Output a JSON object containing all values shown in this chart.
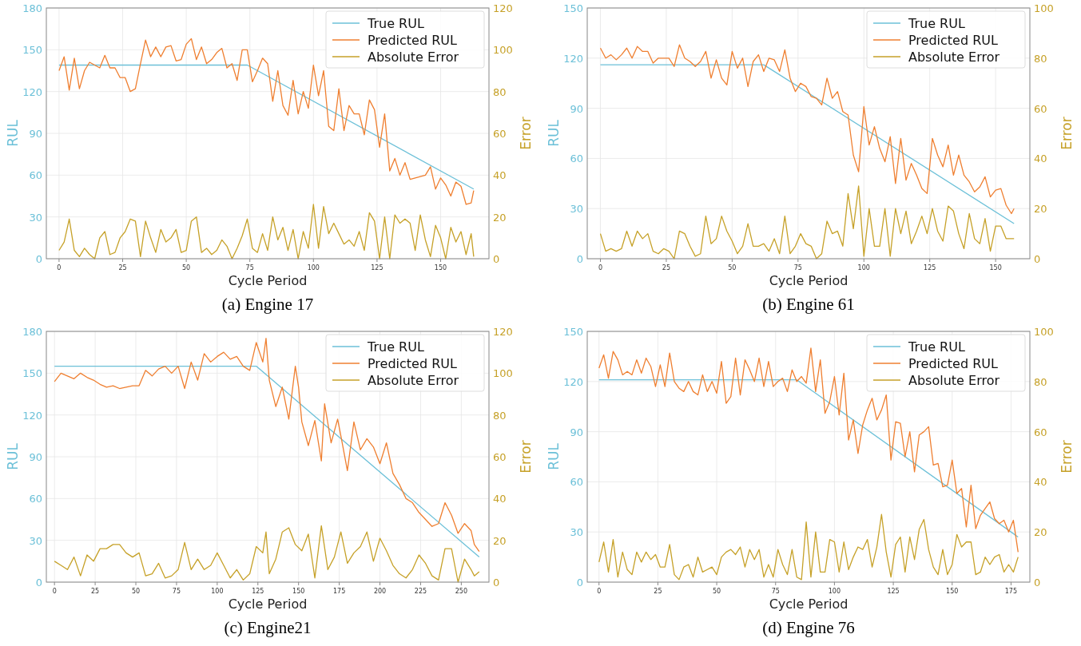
{
  "chart_data": [
    {
      "type": "line",
      "title": "(a) Engine 17",
      "xlabel": "Cycle Period",
      "ylabel": "RUL",
      "y2label": "Error",
      "xlim": [
        -5,
        169
      ],
      "xticks": [
        0,
        25,
        50,
        75,
        100,
        125,
        150
      ],
      "ylim": [
        0,
        180
      ],
      "yticks": [
        0,
        30,
        60,
        90,
        120,
        150,
        180
      ],
      "y2lim": [
        0,
        120
      ],
      "y2ticks": [
        0,
        20,
        40,
        60,
        80,
        100,
        120
      ],
      "grid": true,
      "legend": "top right",
      "series": [
        {
          "name": "True RUL",
          "color": "#6cc0d8",
          "x": [
            0,
            74,
            163
          ],
          "values": [
            139,
            139,
            50
          ]
        },
        {
          "name": "Predicted RUL",
          "color": "#ef7f30",
          "x": [
            0,
            2,
            4,
            6,
            8,
            10,
            12,
            14,
            16,
            18,
            20,
            22,
            24,
            26,
            28,
            30,
            32,
            34,
            36,
            38,
            40,
            42,
            44,
            46,
            48,
            50,
            52,
            54,
            56,
            58,
            60,
            62,
            64,
            66,
            68,
            70,
            72,
            74,
            76,
            78,
            80,
            82,
            84,
            86,
            88,
            90,
            92,
            94,
            96,
            98,
            100,
            102,
            104,
            106,
            108,
            110,
            112,
            114,
            116,
            118,
            120,
            122,
            124,
            126,
            128,
            130,
            132,
            134,
            136,
            138,
            140,
            142,
            144,
            146,
            148,
            150,
            152,
            154,
            156,
            158,
            160,
            162,
            163
          ],
          "values": [
            135,
            145,
            121,
            144,
            122,
            135,
            141,
            139,
            137,
            146,
            137,
            137,
            130,
            130,
            120,
            122,
            140,
            157,
            145,
            152,
            145,
            152,
            153,
            142,
            143,
            154,
            158,
            143,
            152,
            140,
            143,
            148,
            151,
            137,
            140,
            128,
            150,
            150,
            127,
            135,
            144,
            140,
            113,
            135,
            110,
            103,
            128,
            104,
            120,
            108,
            139,
            117,
            135,
            95,
            92,
            122,
            92,
            110,
            104,
            104,
            89,
            114,
            107,
            80,
            104,
            63,
            72,
            60,
            69,
            57,
            58,
            59,
            60,
            66,
            50,
            58,
            53,
            45,
            55,
            52,
            39,
            40,
            49
          ]
        },
        {
          "name": "Absolute Error",
          "color": "#c6a128",
          "axis": "y2",
          "x": [
            0,
            2,
            4,
            6,
            8,
            10,
            12,
            14,
            16,
            18,
            20,
            22,
            24,
            26,
            28,
            30,
            32,
            34,
            36,
            38,
            40,
            42,
            44,
            46,
            48,
            50,
            52,
            54,
            56,
            58,
            60,
            62,
            64,
            66,
            68,
            70,
            72,
            74,
            76,
            78,
            80,
            82,
            84,
            86,
            88,
            90,
            92,
            94,
            96,
            98,
            100,
            102,
            104,
            106,
            108,
            110,
            112,
            114,
            116,
            118,
            120,
            122,
            124,
            126,
            128,
            130,
            132,
            134,
            136,
            138,
            140,
            142,
            144,
            146,
            148,
            150,
            152,
            154,
            156,
            158,
            160,
            162,
            163
          ],
          "values": [
            4,
            8,
            19,
            4,
            1,
            5,
            2,
            0,
            10,
            13,
            2,
            3,
            10,
            13,
            19,
            18,
            1,
            18,
            10,
            3,
            14,
            8,
            10,
            14,
            3,
            4,
            18,
            20,
            3,
            5,
            2,
            4,
            9,
            6,
            0,
            5,
            11,
            19,
            5,
            3,
            12,
            4,
            20,
            9,
            15,
            4,
            14,
            0,
            13,
            5,
            26,
            5,
            25,
            12,
            17,
            12,
            7,
            9,
            6,
            13,
            4,
            22,
            18,
            0,
            20,
            0,
            21,
            17,
            19,
            17,
            4,
            21,
            9,
            1,
            16,
            10,
            0,
            15,
            8,
            13,
            2,
            12,
            1
          ]
        }
      ]
    },
    {
      "type": "line",
      "title": "(b) Engine 61",
      "xlabel": "Cycle Period",
      "ylabel": "RUL",
      "y2label": "Error",
      "xlim": [
        -5,
        163
      ],
      "xticks": [
        0,
        25,
        50,
        75,
        100,
        125,
        150
      ],
      "ylim": [
        0,
        150
      ],
      "yticks": [
        0,
        30,
        60,
        90,
        120,
        150
      ],
      "y2lim": [
        0,
        100
      ],
      "y2ticks": [
        0,
        20,
        40,
        60,
        80,
        100
      ],
      "grid": true,
      "legend": "top right",
      "series": [
        {
          "name": "True RUL",
          "color": "#6cc0d8",
          "x": [
            0,
            62,
            157
          ],
          "values": [
            116,
            116,
            21
          ]
        },
        {
          "name": "Predicted RUL",
          "color": "#ef7f30",
          "x": [
            0,
            2,
            4,
            6,
            8,
            10,
            12,
            14,
            16,
            18,
            20,
            22,
            24,
            26,
            28,
            30,
            32,
            34,
            36,
            38,
            40,
            42,
            44,
            46,
            48,
            50,
            52,
            54,
            56,
            58,
            60,
            62,
            64,
            66,
            68,
            70,
            72,
            74,
            76,
            78,
            80,
            82,
            84,
            86,
            88,
            90,
            92,
            94,
            96,
            98,
            100,
            102,
            104,
            106,
            108,
            110,
            112,
            114,
            116,
            118,
            120,
            122,
            124,
            126,
            128,
            130,
            132,
            134,
            136,
            138,
            140,
            142,
            144,
            146,
            148,
            150,
            152,
            154,
            156,
            157
          ],
          "values": [
            126,
            120,
            122,
            119,
            122,
            126,
            120,
            127,
            124,
            124,
            117,
            120,
            120,
            120,
            115,
            128,
            120,
            118,
            115,
            118,
            124,
            108,
            119,
            108,
            104,
            124,
            114,
            120,
            103,
            118,
            122,
            112,
            120,
            119,
            112,
            125,
            108,
            100,
            105,
            103,
            97,
            96,
            92,
            108,
            96,
            100,
            88,
            86,
            62,
            52,
            91,
            68,
            79,
            66,
            58,
            73,
            45,
            72,
            47,
            57,
            50,
            42,
            39,
            72,
            62,
            55,
            68,
            50,
            62,
            50,
            46,
            40,
            43,
            49,
            37,
            41,
            42,
            32,
            27,
            30
          ]
        },
        {
          "name": "Absolute Error",
          "color": "#c6a128",
          "axis": "y2",
          "x": [
            0,
            2,
            4,
            6,
            8,
            10,
            12,
            14,
            16,
            18,
            20,
            22,
            24,
            26,
            28,
            30,
            32,
            34,
            36,
            38,
            40,
            42,
            44,
            46,
            48,
            50,
            52,
            54,
            56,
            58,
            60,
            62,
            64,
            66,
            68,
            70,
            72,
            74,
            76,
            78,
            80,
            82,
            84,
            86,
            88,
            90,
            92,
            94,
            96,
            98,
            100,
            102,
            104,
            106,
            108,
            110,
            112,
            114,
            116,
            118,
            120,
            122,
            124,
            126,
            128,
            130,
            132,
            134,
            136,
            138,
            140,
            142,
            144,
            146,
            148,
            150,
            152,
            154,
            156,
            157
          ],
          "values": [
            10,
            3,
            4,
            3,
            4,
            11,
            5,
            11,
            8,
            10,
            3,
            2,
            4,
            3,
            0,
            11,
            10,
            5,
            1,
            2,
            17,
            6,
            8,
            17,
            11,
            7,
            2,
            5,
            14,
            5,
            5,
            6,
            3,
            8,
            2,
            17,
            2,
            5,
            10,
            6,
            5,
            0,
            2,
            15,
            10,
            11,
            5,
            26,
            12,
            29,
            1,
            20,
            5,
            5,
            20,
            1,
            20,
            10,
            19,
            6,
            11,
            17,
            10,
            20,
            11,
            7,
            21,
            19,
            10,
            4,
            18,
            8,
            6,
            16,
            3,
            13,
            13,
            8,
            8,
            8
          ]
        }
      ]
    },
    {
      "type": "line",
      "title": "(c) Engine21",
      "xlabel": "Cycle Period",
      "ylabel": "RUL",
      "y2label": "Error",
      "xlim": [
        -5,
        267
      ],
      "xticks": [
        0,
        25,
        50,
        75,
        100,
        125,
        150,
        175,
        200,
        225,
        250
      ],
      "ylim": [
        0,
        180
      ],
      "yticks": [
        0,
        30,
        60,
        90,
        120,
        150,
        180
      ],
      "y2lim": [
        0,
        120
      ],
      "y2ticks": [
        0,
        20,
        40,
        60,
        80,
        100,
        120
      ],
      "grid": true,
      "legend": "top right",
      "series": [
        {
          "name": "True RUL",
          "color": "#6cc0d8",
          "x": [
            0,
            124,
            261
          ],
          "values": [
            155,
            155,
            18
          ]
        },
        {
          "name": "Predicted RUL",
          "color": "#ef7f30",
          "x": [
            0,
            4,
            8,
            12,
            16,
            20,
            24,
            28,
            32,
            36,
            40,
            44,
            48,
            52,
            56,
            60,
            64,
            68,
            72,
            76,
            80,
            84,
            88,
            92,
            96,
            100,
            104,
            108,
            112,
            116,
            120,
            124,
            128,
            130,
            132,
            136,
            140,
            144,
            148,
            150,
            152,
            156,
            160,
            164,
            166,
            170,
            174,
            176,
            180,
            184,
            188,
            192,
            196,
            200,
            204,
            208,
            212,
            216,
            220,
            224,
            228,
            232,
            236,
            240,
            244,
            248,
            252,
            256,
            258,
            261
          ],
          "values": [
            144,
            150,
            148,
            146,
            150,
            147,
            145,
            142,
            140,
            141,
            139,
            140,
            141,
            141,
            152,
            148,
            153,
            155,
            150,
            155,
            139,
            158,
            145,
            164,
            158,
            162,
            165,
            160,
            162,
            155,
            152,
            172,
            158,
            175,
            145,
            126,
            140,
            117,
            155,
            140,
            115,
            98,
            116,
            87,
            128,
            100,
            117,
            105,
            80,
            115,
            95,
            103,
            97,
            85,
            100,
            78,
            70,
            60,
            57,
            50,
            45,
            40,
            42,
            57,
            48,
            35,
            42,
            37,
            27,
            22
          ]
        },
        {
          "name": "Absolute Error",
          "color": "#c6a128",
          "axis": "y2",
          "x": [
            0,
            4,
            8,
            12,
            16,
            20,
            24,
            28,
            32,
            36,
            40,
            44,
            48,
            52,
            56,
            60,
            64,
            68,
            72,
            76,
            80,
            84,
            88,
            92,
            96,
            100,
            104,
            108,
            112,
            116,
            120,
            124,
            128,
            130,
            132,
            136,
            140,
            144,
            148,
            152,
            156,
            160,
            164,
            168,
            172,
            176,
            180,
            184,
            188,
            192,
            196,
            200,
            204,
            208,
            212,
            216,
            220,
            224,
            228,
            232,
            236,
            240,
            244,
            248,
            252,
            256,
            258,
            261
          ],
          "values": [
            10,
            8,
            6,
            12,
            3,
            13,
            10,
            16,
            16,
            18,
            18,
            14,
            12,
            14,
            3,
            4,
            9,
            2,
            3,
            6,
            19,
            6,
            11,
            6,
            8,
            14,
            8,
            2,
            6,
            1,
            4,
            17,
            14,
            24,
            4,
            11,
            24,
            26,
            18,
            15,
            23,
            2,
            27,
            6,
            12,
            24,
            9,
            14,
            17,
            24,
            10,
            21,
            15,
            8,
            4,
            2,
            6,
            13,
            9,
            3,
            1,
            16,
            16,
            0,
            11,
            6,
            3,
            5
          ]
        }
      ]
    },
    {
      "type": "line",
      "title": "(d) Engine 76",
      "xlabel": "Cycle Period",
      "ylabel": "RUL",
      "y2label": "Error",
      "xlim": [
        -5,
        183
      ],
      "xticks": [
        0,
        25,
        50,
        75,
        100,
        125,
        150,
        175
      ],
      "ylim": [
        0,
        150
      ],
      "yticks": [
        0,
        30,
        60,
        90,
        120,
        150
      ],
      "y2lim": [
        0,
        100
      ],
      "y2ticks": [
        0,
        20,
        40,
        60,
        80,
        100
      ],
      "grid": true,
      "legend": "top right",
      "series": [
        {
          "name": "True RUL",
          "color": "#6cc0d8",
          "x": [
            0,
            84,
            178
          ],
          "values": [
            121,
            121,
            27
          ]
        },
        {
          "name": "Predicted RUL",
          "color": "#ef7f30",
          "x": [
            0,
            2,
            4,
            6,
            8,
            10,
            12,
            14,
            16,
            18,
            20,
            22,
            24,
            26,
            28,
            30,
            32,
            34,
            36,
            38,
            40,
            42,
            44,
            46,
            48,
            50,
            52,
            54,
            56,
            58,
            60,
            62,
            64,
            66,
            68,
            70,
            72,
            74,
            76,
            78,
            80,
            82,
            84,
            86,
            88,
            90,
            92,
            94,
            96,
            98,
            100,
            102,
            104,
            106,
            108,
            110,
            112,
            114,
            116,
            118,
            120,
            122,
            124,
            126,
            128,
            130,
            132,
            134,
            136,
            138,
            140,
            142,
            144,
            146,
            148,
            150,
            152,
            154,
            156,
            158,
            160,
            162,
            164,
            166,
            168,
            170,
            172,
            174,
            176,
            178
          ],
          "values": [
            128,
            136,
            122,
            138,
            133,
            124,
            126,
            124,
            133,
            125,
            134,
            129,
            117,
            130,
            117,
            137,
            120,
            116,
            114,
            120,
            114,
            112,
            124,
            114,
            120,
            113,
            132,
            107,
            111,
            134,
            112,
            133,
            127,
            120,
            134,
            117,
            132,
            117,
            120,
            122,
            114,
            127,
            120,
            123,
            119,
            140,
            114,
            133,
            101,
            108,
            123,
            100,
            125,
            85,
            97,
            77,
            94,
            103,
            110,
            97,
            103,
            112,
            73,
            96,
            95,
            75,
            90,
            66,
            88,
            90,
            93,
            70,
            71,
            57,
            58,
            73,
            53,
            56,
            33,
            58,
            32,
            40,
            44,
            48,
            38,
            35,
            37,
            30,
            37,
            18
          ]
        },
        {
          "name": "Absolute Error",
          "color": "#c6a128",
          "axis": "y2",
          "x": [
            0,
            2,
            4,
            6,
            8,
            10,
            12,
            14,
            16,
            18,
            20,
            22,
            24,
            26,
            28,
            30,
            32,
            34,
            36,
            38,
            40,
            42,
            44,
            46,
            48,
            50,
            52,
            54,
            56,
            58,
            60,
            62,
            64,
            66,
            68,
            70,
            72,
            74,
            76,
            78,
            80,
            82,
            84,
            86,
            88,
            90,
            92,
            94,
            96,
            98,
            100,
            102,
            104,
            106,
            108,
            110,
            112,
            114,
            116,
            118,
            120,
            122,
            124,
            126,
            128,
            130,
            132,
            134,
            136,
            138,
            140,
            142,
            144,
            146,
            148,
            150,
            152,
            154,
            156,
            158,
            160,
            162,
            164,
            166,
            168,
            170,
            172,
            174,
            176,
            178
          ],
          "values": [
            8,
            16,
            4,
            17,
            2,
            12,
            5,
            3,
            12,
            8,
            12,
            9,
            11,
            6,
            6,
            15,
            3,
            1,
            6,
            7,
            2,
            10,
            4,
            5,
            6,
            3,
            10,
            12,
            13,
            11,
            14,
            6,
            13,
            9,
            13,
            2,
            7,
            2,
            13,
            7,
            3,
            13,
            2,
            1,
            24,
            2,
            20,
            4,
            4,
            17,
            16,
            4,
            16,
            5,
            10,
            14,
            13,
            17,
            6,
            14,
            27,
            12,
            2,
            15,
            18,
            4,
            18,
            9,
            21,
            25,
            13,
            6,
            3,
            13,
            3,
            7,
            19,
            14,
            16,
            16,
            3,
            4,
            10,
            7,
            10,
            11,
            4,
            7,
            4,
            10
          ]
        }
      ]
    }
  ]
}
